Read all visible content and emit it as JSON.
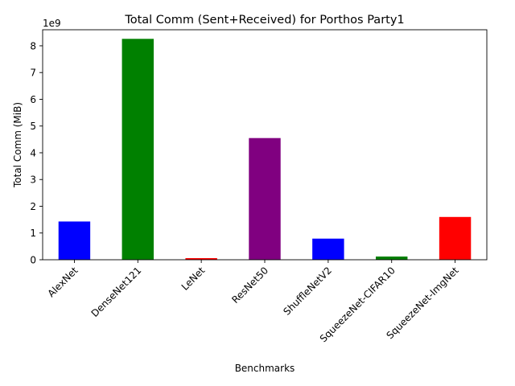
{
  "chart_data": {
    "type": "bar",
    "title": "Total Comm (Sent+Received) for Porthos Party1",
    "xlabel": "Benchmarks",
    "ylabel": "Total Comm (MiB)",
    "y_offset_label": "1e9",
    "ylim": [
      0,
      8.6
    ],
    "y_ticks": [
      "0",
      "1",
      "2",
      "3",
      "4",
      "5",
      "6",
      "7",
      "8"
    ],
    "y_scale_factor": 1000000000,
    "grid": false,
    "categories": [
      "AlexNet",
      "DenseNet121",
      "LeNet",
      "ResNet50",
      "ShuffleNetV2",
      "SqueezeNet-CIFAR10",
      "SqueezeNet-ImgNet"
    ],
    "values": [
      1.43,
      8.26,
      0.06,
      4.55,
      0.79,
      0.12,
      1.6
    ],
    "bar_colors": [
      "#0000ff",
      "#008000",
      "#ff0000",
      "#800080",
      "#0000ff",
      "#008000",
      "#ff0000"
    ]
  }
}
